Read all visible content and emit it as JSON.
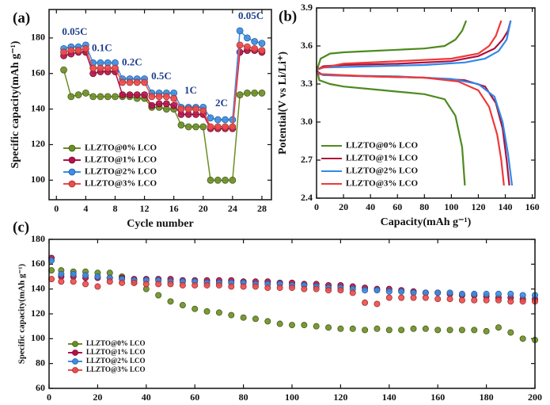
{
  "chart_data": [
    {
      "type": "line",
      "markers": true,
      "panel_label": "(a)",
      "xlabel": "Cycle number",
      "ylabel": "Specific capacity(mAh g⁻¹)",
      "x": [
        1,
        2,
        3,
        4,
        5,
        6,
        7,
        8,
        9,
        10,
        11,
        12,
        13,
        14,
        15,
        16,
        17,
        18,
        19,
        20,
        21,
        22,
        23,
        24,
        25,
        26,
        27,
        28
      ],
      "xlim": [
        -1,
        29.3
      ],
      "xticks": [
        0,
        4,
        8,
        12,
        16,
        20,
        24,
        28
      ],
      "ylim": [
        89,
        196
      ],
      "yticks": [
        100,
        120,
        140,
        160,
        180
      ],
      "legend": "lower left",
      "series": [
        {
          "name": "LLZTO@0% LCO",
          "color": "#6b8e23",
          "values": [
            162,
            147,
            148,
            149,
            147,
            147,
            147,
            147,
            147,
            147,
            146,
            146,
            141,
            141,
            140,
            140,
            131,
            130,
            130,
            130,
            100,
            100,
            100,
            100,
            148,
            149,
            149,
            149
          ]
        },
        {
          "name": "LLZTO@1% LCO",
          "color": "#b5124a",
          "values": [
            170,
            171,
            172,
            172,
            160,
            161,
            161,
            161,
            148,
            148,
            148,
            148,
            142,
            143,
            143,
            142,
            137,
            137,
            137,
            137,
            129,
            129,
            129,
            129,
            172,
            173,
            173,
            172
          ]
        },
        {
          "name": "LLZTO@2% LCO",
          "color": "#3a8ee6",
          "values": [
            174,
            175,
            175,
            176,
            166,
            166,
            166,
            166,
            157,
            157,
            157,
            157,
            149,
            149,
            149,
            149,
            141,
            141,
            141,
            141,
            135,
            134,
            134,
            134,
            184,
            180,
            178,
            177
          ]
        },
        {
          "name": "LLZTO@3% LCO",
          "color": "#f04a4a",
          "values": [
            172,
            173,
            173,
            174,
            163,
            163,
            163,
            163,
            155,
            155,
            155,
            155,
            147,
            147,
            147,
            146,
            140,
            140,
            140,
            139,
            130,
            130,
            130,
            130,
            176,
            175,
            174,
            173
          ]
        }
      ],
      "annotation_color": "#1d3f8f",
      "annotations": [
        {
          "text": "0.05C",
          "x": 2.5,
          "y": 183
        },
        {
          "text": "0.1C",
          "x": 6.2,
          "y": 174
        },
        {
          "text": "0.2C",
          "x": 10.3,
          "y": 166
        },
        {
          "text": "0.5C",
          "x": 14.3,
          "y": 158
        },
        {
          "text": "1C",
          "x": 18.3,
          "y": 150
        },
        {
          "text": "2C",
          "x": 22.5,
          "y": 143
        },
        {
          "text": "0.05C",
          "x": 26.5,
          "y": 192
        }
      ]
    },
    {
      "type": "line",
      "markers": false,
      "panel_label": "(b)",
      "xlabel": "Capacity(mAh g⁻¹)",
      "ylabel": "Potential(V vs Li/Li⁺)",
      "xlim": [
        0,
        162
      ],
      "xticks": [
        0,
        20,
        40,
        60,
        80,
        100,
        120,
        140,
        160
      ],
      "ylim": [
        2.4,
        3.9
      ],
      "yticks": [
        2.4,
        2.7,
        {
          "value": 3,
          "label": "3.0"
        },
        3.3,
        3.6,
        3.9
      ],
      "legend": "lower left",
      "series": [
        {
          "name": "LLZTO@0% LCO",
          "color": "#4e8a1e",
          "x": [
            0,
            3,
            10,
            20,
            40,
            60,
            80,
            95,
            103,
            108,
            111,
            null,
            0,
            2,
            10,
            20,
            40,
            60,
            80,
            95,
            103,
            108,
            110
          ],
          "values": [
            3.4,
            3.5,
            3.54,
            3.55,
            3.56,
            3.57,
            3.58,
            3.6,
            3.65,
            3.72,
            3.8,
            null,
            3.44,
            3.33,
            3.3,
            3.28,
            3.26,
            3.24,
            3.22,
            3.18,
            3.05,
            2.8,
            2.5
          ]
        },
        {
          "name": "LLZTO@1% LCO",
          "color": "#b0103c",
          "x": [
            0,
            5,
            20,
            60,
            100,
            120,
            132,
            138,
            142,
            144,
            null,
            0,
            5,
            40,
            80,
            110,
            125,
            133,
            138,
            141,
            143
          ],
          "values": [
            3.41,
            3.44,
            3.45,
            3.46,
            3.48,
            3.52,
            3.58,
            3.65,
            3.72,
            3.8,
            null,
            3.4,
            3.37,
            3.36,
            3.35,
            3.33,
            3.28,
            3.15,
            2.95,
            2.7,
            2.5
          ]
        },
        {
          "name": "LLZTO@2% LCO",
          "color": "#2f8ae8",
          "x": [
            0,
            5,
            40,
            80,
            110,
            125,
            135,
            141,
            144,
            null,
            0,
            5,
            60,
            100,
            120,
            132,
            138,
            142,
            145
          ],
          "values": [
            3.41,
            3.43,
            3.44,
            3.45,
            3.47,
            3.5,
            3.56,
            3.65,
            3.8,
            null,
            3.39,
            3.37,
            3.36,
            3.34,
            3.3,
            3.2,
            3.0,
            2.75,
            2.5
          ]
        },
        {
          "name": "LLZTO@3% LCO",
          "color": "#f03838",
          "x": [
            0,
            20,
            60,
            100,
            120,
            128,
            133,
            137,
            null,
            0,
            40,
            80,
            105,
            120,
            128,
            134,
            137,
            139
          ],
          "values": [
            3.42,
            3.46,
            3.48,
            3.5,
            3.54,
            3.6,
            3.68,
            3.8,
            null,
            3.38,
            3.36,
            3.35,
            3.32,
            3.25,
            3.12,
            2.9,
            2.7,
            2.5
          ]
        }
      ]
    },
    {
      "type": "scatter",
      "panel_label": "(c)",
      "ylabel": "Specific capacity(mAh g⁻¹)",
      "x": [
        1,
        5,
        10,
        15,
        20,
        25,
        30,
        35,
        40,
        45,
        50,
        55,
        60,
        65,
        70,
        75,
        80,
        85,
        90,
        95,
        100,
        105,
        110,
        115,
        120,
        125,
        130,
        135,
        140,
        145,
        150,
        155,
        160,
        165,
        170,
        175,
        180,
        185,
        190,
        195,
        200
      ],
      "xlim": [
        0,
        200
      ],
      "xticks": [
        0,
        20,
        40,
        60,
        80,
        100,
        120,
        140,
        160,
        180,
        200
      ],
      "ylim": [
        60,
        180
      ],
      "yticks": [
        60,
        80,
        100,
        120,
        140,
        160,
        180
      ],
      "legend": "lower left",
      "series": [
        {
          "name": "LLZTO@0% LCO",
          "color": "#6b8e23",
          "values": [
            155,
            155,
            154,
            154,
            153,
            153,
            150,
            145,
            140,
            135,
            130,
            127,
            124,
            122,
            121,
            119,
            117,
            116,
            114,
            112,
            111,
            111,
            110,
            109,
            108,
            108,
            107,
            108,
            107,
            107,
            108,
            108,
            107,
            107,
            107,
            107,
            106,
            109,
            105,
            100,
            99
          ]
        },
        {
          "name": "LLZTO@1% LCO",
          "color": "#b5124a",
          "values": [
            165,
            150,
            150,
            149,
            149,
            149,
            149,
            148,
            148,
            148,
            148,
            147,
            147,
            147,
            147,
            147,
            146,
            146,
            146,
            145,
            145,
            144,
            144,
            143,
            143,
            142,
            141,
            140,
            140,
            139,
            138,
            137,
            137,
            136,
            135,
            135,
            134,
            133,
            133,
            132,
            132
          ]
        },
        {
          "name": "LLZTO@2% LCO",
          "color": "#3a8ee6",
          "values": [
            163,
            152,
            152,
            151,
            150,
            149,
            148,
            147,
            147,
            147,
            146,
            146,
            146,
            145,
            145,
            145,
            145,
            144,
            144,
            144,
            143,
            143,
            142,
            141,
            141,
            140,
            139,
            139,
            138,
            138,
            137,
            137,
            137,
            137,
            136,
            136,
            136,
            136,
            136,
            135,
            135
          ]
        },
        {
          "name": "LLZTO@3% LCO",
          "color": "#f04a4a",
          "values": [
            148,
            146,
            146,
            144,
            142,
            146,
            145,
            145,
            144,
            144,
            144,
            143,
            143,
            143,
            143,
            142,
            142,
            142,
            141,
            141,
            141,
            140,
            140,
            139,
            139,
            137,
            129,
            128,
            133,
            133,
            133,
            133,
            132,
            132,
            131,
            131,
            131,
            131,
            130,
            130,
            130
          ]
        }
      ]
    }
  ]
}
